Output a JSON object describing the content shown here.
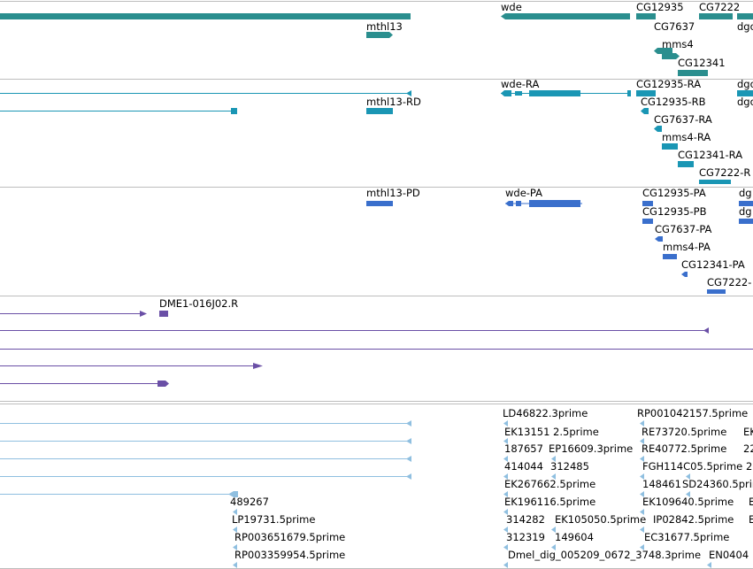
{
  "colors": {
    "gene": "#2a8e8e",
    "mrna": "#1a96b4",
    "protein": "#3a6fcc",
    "clone": "#6a4fa6",
    "est": "#8fbfe0",
    "separator": "#bdbdbd"
  },
  "tracks": [
    {
      "id": "genes",
      "features": [
        {
          "label": "wde"
        },
        {
          "label": "CG12935"
        },
        {
          "label": "CG7222"
        },
        {
          "label": "mthl13"
        },
        {
          "label": "CG7637"
        },
        {
          "label": "dgo"
        },
        {
          "label": "mms4"
        },
        {
          "label": "CG12341"
        }
      ]
    },
    {
      "id": "transcripts",
      "features": [
        {
          "label": "wde-RA"
        },
        {
          "label": "CG12935-RA"
        },
        {
          "label": "dgo"
        },
        {
          "label": "mthl13-RD"
        },
        {
          "label": "CG12935-RB"
        },
        {
          "label": "dgo"
        },
        {
          "label": "CG7637-RA"
        },
        {
          "label": "mms4-RA"
        },
        {
          "label": "CG12341-RA"
        },
        {
          "label": "CG7222-R"
        }
      ]
    },
    {
      "id": "proteins",
      "features": [
        {
          "label": "mthl13-PD"
        },
        {
          "label": "wde-PA"
        },
        {
          "label": "CG12935-PA"
        },
        {
          "label": "dg"
        },
        {
          "label": "CG12935-PB"
        },
        {
          "label": "dg"
        },
        {
          "label": "CG7637-PA"
        },
        {
          "label": "mms4-PA"
        },
        {
          "label": "CG12341-PA"
        },
        {
          "label": "CG7222-"
        }
      ]
    },
    {
      "id": "clones",
      "features": [
        {
          "label": "DME1-016J02.R"
        }
      ]
    },
    {
      "id": "ests",
      "features": [
        {
          "label": "LD46822.3prime"
        },
        {
          "label": "RP001042157.5prime"
        },
        {
          "label": "EK13151 2.5prime"
        },
        {
          "label": "RE73720.5prime"
        },
        {
          "label": "EK"
        },
        {
          "label": "187657"
        },
        {
          "label": "EP16609.3prime"
        },
        {
          "label": "RE40772.5prime"
        },
        {
          "label": "22"
        },
        {
          "label": "414044"
        },
        {
          "label": "312485"
        },
        {
          "label": "FGH114C05.5prime"
        },
        {
          "label": "2"
        },
        {
          "label": "EK267662.5prime"
        },
        {
          "label": "148461"
        },
        {
          "label": "SD24360.5prime"
        },
        {
          "label": "489267"
        },
        {
          "label": "EK196116.5prime"
        },
        {
          "label": "EK109640.5prime"
        },
        {
          "label": "E"
        },
        {
          "label": "LP19731.5prime"
        },
        {
          "label": "314282"
        },
        {
          "label": "EK105050.5prime"
        },
        {
          "label": "IP02842.5prime"
        },
        {
          "label": "E"
        },
        {
          "label": "RP003651679.5prime"
        },
        {
          "label": "312319"
        },
        {
          "label": "149604"
        },
        {
          "label": "EC31677.5prime"
        },
        {
          "label": "RP003359954.5prime"
        },
        {
          "label": "Dmel_dig_005209_0672_3748.3prime"
        },
        {
          "label": "EN0404"
        }
      ]
    }
  ]
}
